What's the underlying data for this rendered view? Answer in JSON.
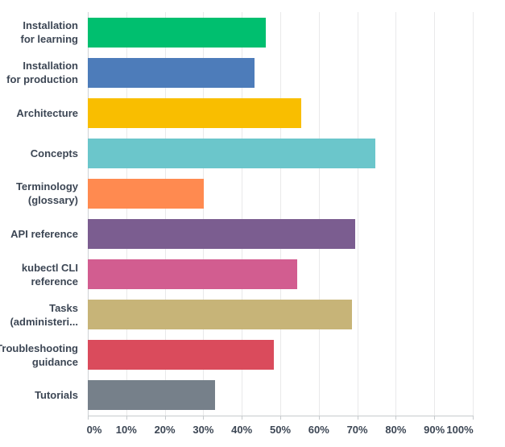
{
  "chart_data": {
    "type": "bar",
    "orientation": "horizontal",
    "title": "",
    "xlabel": "",
    "ylabel": "",
    "xlim": [
      0,
      100
    ],
    "grid": "vertical",
    "legend": "none",
    "categories": [
      "Installation\nfor learning",
      "Installation\nfor production",
      "Architecture",
      "Concepts",
      "Terminology\n(glossary)",
      "API reference",
      "kubectl CLI\nreference",
      "Tasks\n(administeri...",
      "Troubleshooting\nguidance",
      "Tutorials"
    ],
    "values": [
      46.3,
      43.4,
      55.5,
      74.6,
      30.2,
      69.5,
      54.4,
      68.6,
      48.3,
      33.0
    ],
    "bar_colors": [
      "#00BF6F",
      "#4D7CBA",
      "#F9BE00",
      "#6BC6CB",
      "#FF8A50",
      "#7B5D90",
      "#D25D90",
      "#C7B478",
      "#DA4B5C",
      "#76808A"
    ],
    "x_tick_labels": [
      "0%",
      "10%",
      "20%",
      "30%",
      "40%",
      "50%",
      "60%",
      "70%",
      "80%",
      "90%",
      "100%"
    ],
    "x_tick_values": [
      0,
      10,
      20,
      30,
      40,
      50,
      60,
      70,
      80,
      90,
      100
    ]
  }
}
